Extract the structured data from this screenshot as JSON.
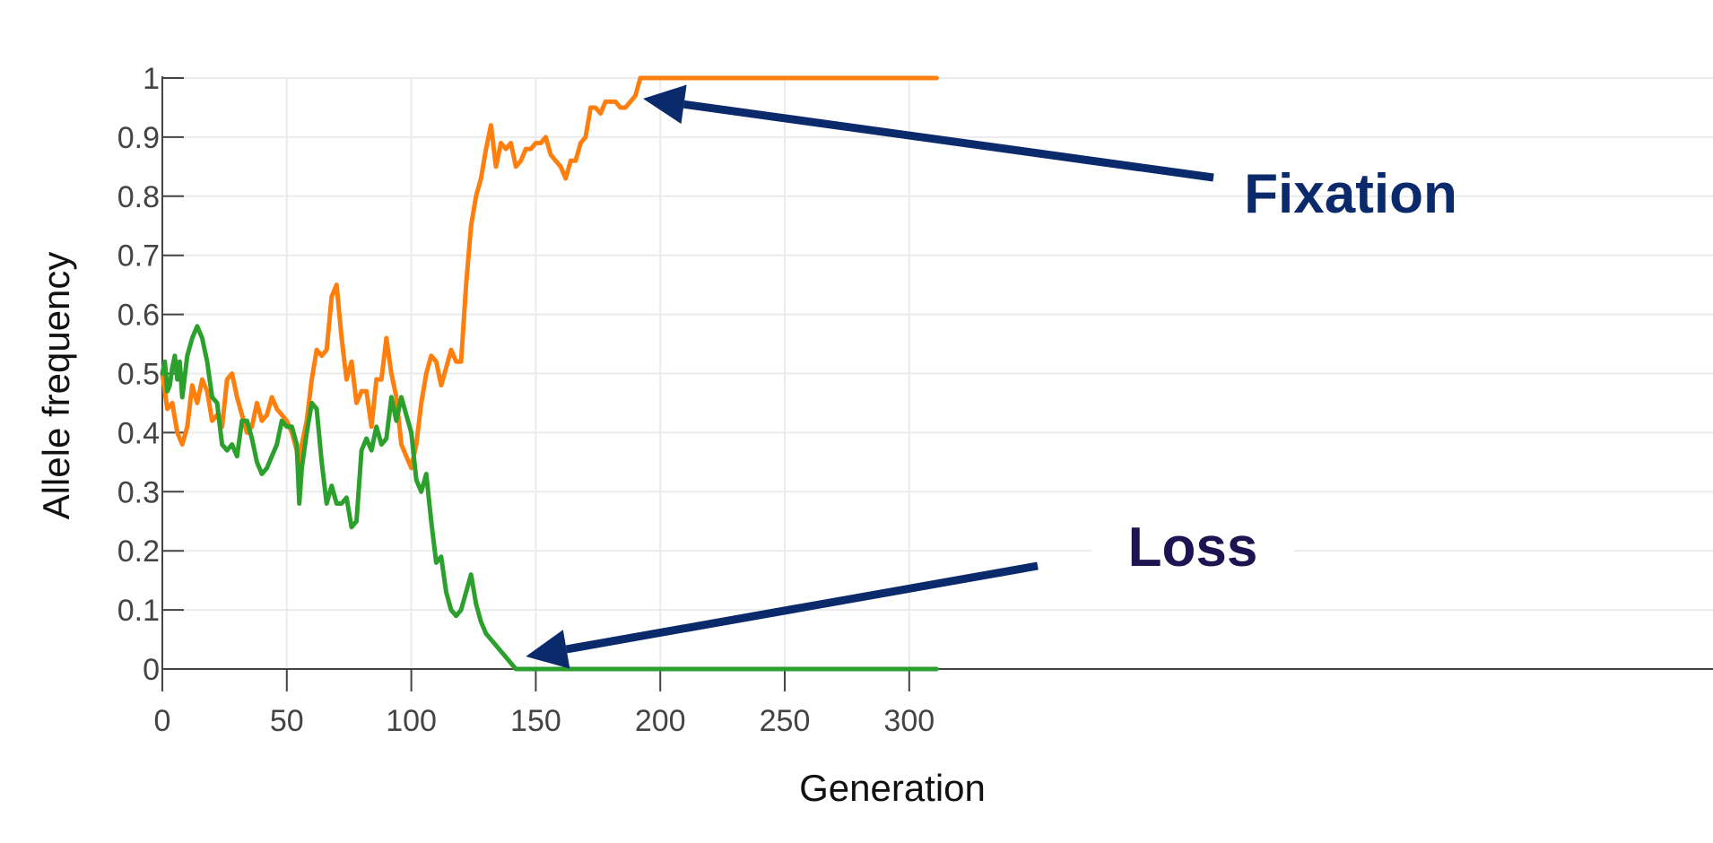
{
  "chart_data": {
    "type": "line",
    "xlabel": "Generation",
    "ylabel": "Allele frequency",
    "xlim": [
      0,
      311
    ],
    "ylim": [
      0,
      1
    ],
    "xticks": [
      0,
      50,
      100,
      150,
      200,
      250,
      300
    ],
    "xtick_labels": [
      "0",
      "50",
      "100",
      "150",
      "200",
      "250",
      "300"
    ],
    "yticks": [
      0,
      0.1,
      0.2,
      0.3,
      0.4,
      0.5,
      0.6,
      0.7,
      0.8,
      0.9,
      1
    ],
    "ytick_labels": [
      "0",
      "0.1",
      "0.2",
      "0.3",
      "0.4",
      "0.5",
      "0.6",
      "0.7",
      "0.8",
      "0.9",
      "1"
    ],
    "grid": true,
    "legend": false,
    "colors": {
      "orange": "#ff7f0e",
      "green": "#2ca02c",
      "annotation": "#0b2a6b",
      "loss_text": "#1f1452"
    },
    "series": [
      {
        "color": "#ff7f0e",
        "x": [
          0,
          2,
          4,
          6,
          8,
          10,
          12,
          14,
          16,
          18,
          20,
          22,
          24,
          26,
          28,
          30,
          32,
          34,
          36,
          38,
          40,
          42,
          44,
          46,
          48,
          50,
          52,
          54,
          55,
          56,
          58,
          60,
          62,
          64,
          66,
          68,
          70,
          72,
          74,
          76,
          78,
          80,
          82,
          84,
          86,
          88,
          90,
          92,
          94,
          96,
          98,
          100,
          102,
          104,
          106,
          108,
          110,
          112,
          114,
          116,
          118,
          120,
          122,
          124,
          126,
          128,
          130,
          132,
          134,
          136,
          138,
          140,
          142,
          144,
          146,
          148,
          150,
          152,
          154,
          156,
          158,
          160,
          162,
          164,
          166,
          168,
          170,
          172,
          174,
          176,
          178,
          180,
          182,
          184,
          186,
          188,
          190,
          192,
          194,
          200,
          250,
          311
        ],
        "y": [
          0.5,
          0.44,
          0.45,
          0.4,
          0.38,
          0.41,
          0.48,
          0.45,
          0.49,
          0.47,
          0.42,
          0.43,
          0.41,
          0.49,
          0.5,
          0.46,
          0.43,
          0.4,
          0.41,
          0.45,
          0.42,
          0.43,
          0.46,
          0.44,
          0.43,
          0.42,
          0.4,
          0.37,
          0.32,
          0.38,
          0.42,
          0.49,
          0.54,
          0.53,
          0.54,
          0.63,
          0.65,
          0.56,
          0.49,
          0.52,
          0.45,
          0.47,
          0.47,
          0.41,
          0.49,
          0.49,
          0.56,
          0.5,
          0.46,
          0.38,
          0.36,
          0.34,
          0.38,
          0.45,
          0.5,
          0.53,
          0.52,
          0.48,
          0.51,
          0.54,
          0.52,
          0.52,
          0.65,
          0.75,
          0.8,
          0.83,
          0.88,
          0.92,
          0.85,
          0.89,
          0.88,
          0.89,
          0.85,
          0.86,
          0.88,
          0.88,
          0.89,
          0.89,
          0.9,
          0.87,
          0.86,
          0.85,
          0.83,
          0.86,
          0.86,
          0.89,
          0.9,
          0.95,
          0.95,
          0.94,
          0.96,
          0.96,
          0.96,
          0.95,
          0.95,
          0.96,
          0.97,
          1.0,
          1.0,
          1.0,
          1.0,
          1.0
        ]
      },
      {
        "color": "#2ca02c",
        "x": [
          0,
          1,
          2,
          3,
          4,
          5,
          6,
          7,
          8,
          10,
          12,
          14,
          16,
          18,
          20,
          22,
          24,
          26,
          28,
          30,
          32,
          34,
          36,
          38,
          40,
          42,
          44,
          46,
          48,
          50,
          52,
          54,
          55,
          56,
          58,
          60,
          62,
          64,
          66,
          68,
          70,
          72,
          74,
          76,
          78,
          80,
          82,
          84,
          86,
          88,
          90,
          92,
          94,
          96,
          98,
          100,
          102,
          104,
          106,
          108,
          110,
          112,
          114,
          116,
          118,
          120,
          122,
          124,
          126,
          128,
          130,
          132,
          134,
          136,
          138,
          140,
          142,
          144,
          146,
          148,
          150,
          200,
          250,
          311
        ],
        "y": [
          0.5,
          0.52,
          0.47,
          0.48,
          0.51,
          0.53,
          0.49,
          0.52,
          0.46,
          0.53,
          0.56,
          0.58,
          0.56,
          0.52,
          0.46,
          0.45,
          0.38,
          0.37,
          0.38,
          0.36,
          0.42,
          0.42,
          0.39,
          0.35,
          0.33,
          0.34,
          0.36,
          0.38,
          0.42,
          0.41,
          0.41,
          0.38,
          0.28,
          0.34,
          0.4,
          0.45,
          0.44,
          0.35,
          0.28,
          0.31,
          0.28,
          0.28,
          0.29,
          0.24,
          0.25,
          0.37,
          0.39,
          0.37,
          0.41,
          0.38,
          0.39,
          0.46,
          0.42,
          0.46,
          0.43,
          0.4,
          0.32,
          0.3,
          0.33,
          0.25,
          0.18,
          0.19,
          0.13,
          0.1,
          0.09,
          0.1,
          0.13,
          0.16,
          0.11,
          0.08,
          0.06,
          0.05,
          0.04,
          0.03,
          0.02,
          0.01,
          0.0,
          0.0,
          0.0,
          0.0,
          0.0,
          0.0,
          0.0,
          0.0
        ]
      }
    ],
    "annotations": [
      {
        "text": "Fixation",
        "arrow_to": [
          192,
          1.0
        ]
      },
      {
        "text": "Loss",
        "arrow_to": [
          146,
          0.0
        ]
      }
    ]
  }
}
